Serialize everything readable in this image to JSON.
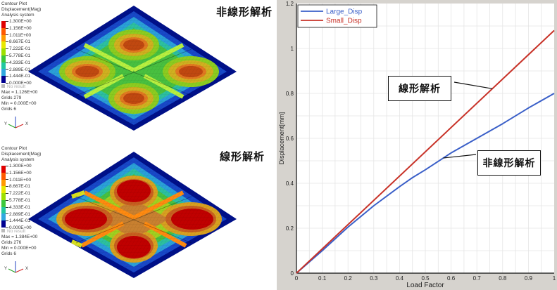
{
  "contour_panels": [
    {
      "id": "nonlinear",
      "title": "非線形解析",
      "header": [
        "Contour Plot",
        "Displacement(Mag)",
        "Analysis system"
      ],
      "colorbar_labels": [
        "1.300E+00",
        "1.156E+00",
        "1.011E+00",
        "8.667E-01",
        "7.222E-01",
        "5.778E-01",
        "4.333E-01",
        "2.889E-01",
        "1.444E-01",
        "0.000E+00"
      ],
      "no_result_label": "No result",
      "max_label": "Max = 1.126E+00",
      "max_grid": "Grids 279",
      "min_label": "Min = 0.000E+00",
      "min_grid": "Grids 6"
    },
    {
      "id": "linear",
      "title": "線形解析",
      "header": [
        "Contour Plot",
        "Displacement(Mag)",
        "Analysis system"
      ],
      "colorbar_labels": [
        "1.300E+00",
        "1.156E+00",
        "1.011E+00",
        "8.667E-01",
        "7.222E-01",
        "5.778E-01",
        "4.333E-01",
        "2.889E-01",
        "1.444E-01",
        "0.000E+00"
      ],
      "no_result_label": "No result",
      "max_label": "Max = 1.384E+00",
      "max_grid": "Grids 276",
      "min_label": "Min = 0.000E+00",
      "min_grid": "Grids 6"
    }
  ],
  "colorbar_colors": [
    "#e00000",
    "#ff5a00",
    "#ff9a00",
    "#e8e800",
    "#9ee000",
    "#3cc83c",
    "#22c8a0",
    "#30a8e0",
    "#1a5ad8",
    "#000090"
  ],
  "triad": {
    "y": "Y",
    "z": "Z",
    "x": "X"
  },
  "chart_data": {
    "type": "line",
    "title": "",
    "xlabel": "Load Factor",
    "ylabel": "Displacement[mm]",
    "xlim": [
      0,
      1
    ],
    "ylim": [
      0,
      1.2
    ],
    "xticks": [
      "0",
      "0.1",
      "0.2",
      "0.3",
      "0.4",
      "0.5",
      "0.6",
      "0.7",
      "0.8",
      "0.9",
      "1"
    ],
    "yticks": [
      "0",
      "0.2",
      "0.4",
      "0.6",
      "0.8",
      "1",
      "1.2"
    ],
    "grid": true,
    "legend_position": "upper-left",
    "series": [
      {
        "name": "Large_Disp",
        "color": "#3a5fc8",
        "x": [
          0,
          0.1,
          0.2,
          0.3,
          0.4,
          0.45,
          0.5,
          0.6,
          0.7,
          0.8,
          0.9,
          1.0
        ],
        "values": [
          0,
          0.1,
          0.205,
          0.3,
          0.385,
          0.425,
          0.46,
          0.535,
          0.6,
          0.665,
          0.735,
          0.8
        ]
      },
      {
        "name": "Small_Disp",
        "color": "#c83228",
        "x": [
          0,
          1.0
        ],
        "values": [
          0,
          1.08
        ]
      }
    ],
    "annotations": [
      {
        "text": "線形解析",
        "target_series": "Small_Disp",
        "target_x": 0.76
      },
      {
        "text": "非線形解析",
        "target_series": "Large_Disp",
        "target_x": 0.57
      }
    ]
  }
}
